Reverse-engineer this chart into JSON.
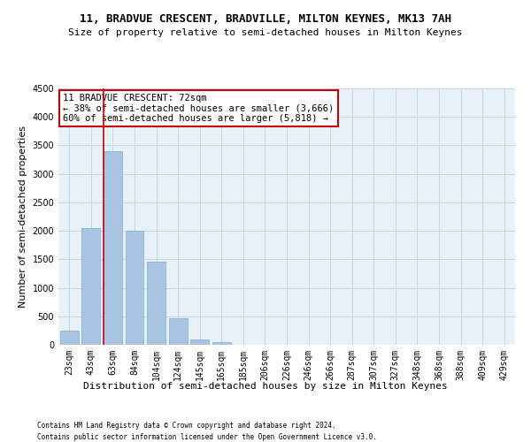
{
  "title": "11, BRADVUE CRESCENT, BRADVILLE, MILTON KEYNES, MK13 7AH",
  "subtitle": "Size of property relative to semi-detached houses in Milton Keynes",
  "xlabel": "Distribution of semi-detached houses by size in Milton Keynes",
  "ylabel": "Number of semi-detached properties",
  "categories": [
    "23sqm",
    "43sqm",
    "63sqm",
    "84sqm",
    "104sqm",
    "124sqm",
    "145sqm",
    "165sqm",
    "185sqm",
    "206sqm",
    "226sqm",
    "246sqm",
    "266sqm",
    "287sqm",
    "307sqm",
    "327sqm",
    "348sqm",
    "368sqm",
    "388sqm",
    "409sqm",
    "429sqm"
  ],
  "values": [
    250,
    2050,
    3400,
    2000,
    1460,
    460,
    100,
    45,
    0,
    0,
    0,
    0,
    0,
    0,
    0,
    0,
    0,
    0,
    0,
    0,
    0
  ],
  "bar_color": "#a8c4e0",
  "bar_edge_color": "#7aafd4",
  "vline_color": "#cc0000",
  "annotation_title": "11 BRADVUE CRESCENT: 72sqm",
  "annotation_line1": "← 38% of semi-detached houses are smaller (3,666)",
  "annotation_line2": "60% of semi-detached houses are larger (5,818) →",
  "annotation_box_color": "#ffffff",
  "annotation_box_edge": "#cc0000",
  "ylim": [
    0,
    4500
  ],
  "yticks": [
    0,
    500,
    1000,
    1500,
    2000,
    2500,
    3000,
    3500,
    4000,
    4500
  ],
  "grid_color": "#c8d8e8",
  "bg_color": "#e8f0f8",
  "footnote1": "Contains HM Land Registry data © Crown copyright and database right 2024.",
  "footnote2": "Contains public sector information licensed under the Open Government Licence v3.0.",
  "title_fontsize": 9,
  "subtitle_fontsize": 8,
  "xlabel_fontsize": 8,
  "ylabel_fontsize": 8,
  "annot_fontsize": 7.5,
  "tick_fontsize": 7,
  "footnote_fontsize": 5.5
}
